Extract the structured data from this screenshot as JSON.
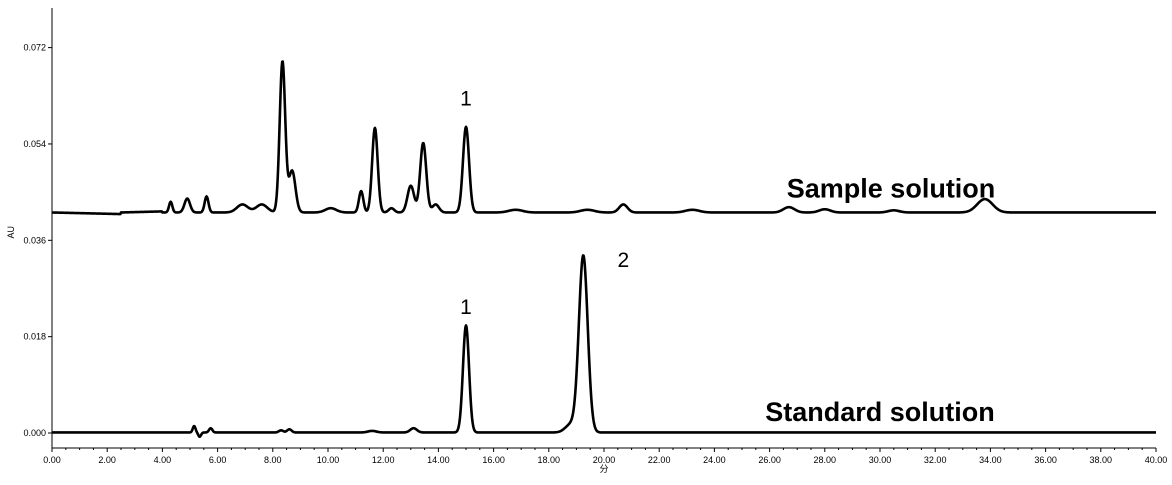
{
  "chart_data": {
    "type": "line",
    "xlabel": "分",
    "ylabel": "AU",
    "xlim": [
      0,
      40
    ],
    "ylim": [
      -0.0028,
      0.0794
    ],
    "x_ticks": [
      "0.00",
      "2.00",
      "4.00",
      "6.00",
      "8.00",
      "10.00",
      "12.00",
      "14.00",
      "16.00",
      "18.00",
      "20.00",
      "22.00",
      "24.00",
      "26.00",
      "28.00",
      "30.00",
      "32.00",
      "34.00",
      "36.00",
      "38.00",
      "40.00"
    ],
    "y_ticks": [
      "0.000",
      "0.018",
      "0.036",
      "0.054",
      "0.072"
    ],
    "grid": false,
    "series": [
      {
        "name": "Sample solution",
        "line_color": "#000000",
        "baseline": 0.0412,
        "x_start": 0.0,
        "x_end": 40.0,
        "shape": [
          {
            "t": 4.3,
            "h": 0.002,
            "w": 0.06
          },
          {
            "t": 4.9,
            "h": 0.0026,
            "w": 0.1
          },
          {
            "t": 5.6,
            "h": 0.003,
            "w": 0.07
          },
          {
            "t": 6.9,
            "h": 0.0015,
            "w": 0.2
          },
          {
            "t": 7.6,
            "h": 0.0015,
            "w": 0.2
          },
          {
            "t": 8.35,
            "h": 0.0282,
            "w": 0.1
          },
          {
            "t": 8.7,
            "h": 0.0078,
            "w": 0.12
          },
          {
            "t": 10.1,
            "h": 0.0008,
            "w": 0.2
          },
          {
            "t": 11.2,
            "h": 0.004,
            "w": 0.08
          },
          {
            "t": 11.7,
            "h": 0.0158,
            "w": 0.1
          },
          {
            "t": 12.3,
            "h": 0.0008,
            "w": 0.1
          },
          {
            "t": 13.0,
            "h": 0.005,
            "w": 0.12
          },
          {
            "t": 13.45,
            "h": 0.013,
            "w": 0.11
          },
          {
            "t": 13.9,
            "h": 0.0015,
            "w": 0.12
          },
          {
            "t": 15.0,
            "h": 0.016,
            "w": 0.11
          },
          {
            "t": 16.8,
            "h": 0.0005,
            "w": 0.25
          },
          {
            "t": 19.4,
            "h": 0.0005,
            "w": 0.25
          },
          {
            "t": 20.7,
            "h": 0.0015,
            "w": 0.15
          },
          {
            "t": 23.2,
            "h": 0.0005,
            "w": 0.25
          },
          {
            "t": 26.7,
            "h": 0.001,
            "w": 0.2
          },
          {
            "t": 28.0,
            "h": 0.0006,
            "w": 0.2
          },
          {
            "t": 30.5,
            "h": 0.0004,
            "w": 0.2
          },
          {
            "t": 33.8,
            "h": 0.0025,
            "w": 0.28
          }
        ]
      },
      {
        "name": "Standard solution",
        "line_color": "#000000",
        "baseline": 0.0001,
        "x_start": 0.0,
        "x_end": 40.0,
        "shape": [
          {
            "t": 5.15,
            "h": 0.0012,
            "w": 0.05
          },
          {
            "t": 5.35,
            "h": -0.0008,
            "w": 0.05
          },
          {
            "t": 5.75,
            "h": 0.0008,
            "w": 0.06
          },
          {
            "t": 8.3,
            "h": 0.0004,
            "w": 0.08
          },
          {
            "t": 8.6,
            "h": 0.0006,
            "w": 0.08
          },
          {
            "t": 11.6,
            "h": 0.0003,
            "w": 0.15
          },
          {
            "t": 13.1,
            "h": 0.0008,
            "w": 0.12
          },
          {
            "t": 15.0,
            "h": 0.02,
            "w": 0.11
          },
          {
            "t": 18.8,
            "h": 0.0015,
            "w": 0.2
          },
          {
            "t": 19.25,
            "h": 0.033,
            "w": 0.16
          }
        ]
      }
    ],
    "annotations": [
      {
        "text": "1",
        "x": 15.0,
        "y": 0.0612,
        "role": "peak-label"
      },
      {
        "text": "1",
        "x": 15.0,
        "y": 0.0222,
        "role": "peak-label"
      },
      {
        "text": "2",
        "x": 20.7,
        "y": 0.031,
        "role": "peak-label"
      },
      {
        "text": "Sample solution",
        "x": 30.4,
        "y": 0.044,
        "role": "trace-label"
      },
      {
        "text": "Standard solution",
        "x": 30.0,
        "y": 0.0022,
        "role": "trace-label"
      }
    ]
  }
}
